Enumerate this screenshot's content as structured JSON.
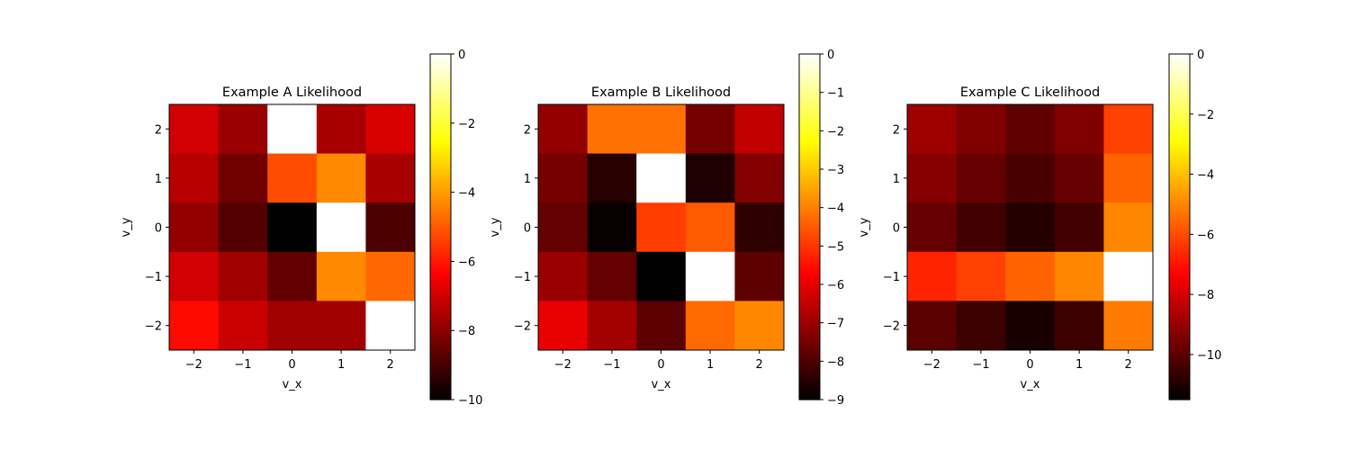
{
  "chart_data": [
    {
      "type": "heatmap",
      "title": "Example A Likelihood",
      "xlabel": "v_x",
      "ylabel": "v_y",
      "x": [
        -2,
        -1,
        0,
        1,
        2
      ],
      "y": [
        2,
        1,
        0,
        -1,
        -2
      ],
      "x_tick_labels": [
        "−2",
        "−1",
        "0",
        "1",
        "2"
      ],
      "y_tick_labels": [
        "2",
        "1",
        "0",
        "−1",
        "−2"
      ],
      "values": [
        [
          -7.0,
          -7.8,
          0.0,
          -7.6,
          -6.9
        ],
        [
          -7.4,
          -8.4,
          -5.2,
          -4.3,
          -7.6
        ],
        [
          -7.9,
          -8.8,
          -10.0,
          0.0,
          -8.9
        ],
        [
          -7.0,
          -7.7,
          -8.6,
          -4.3,
          -4.8
        ],
        [
          -6.2,
          -7.1,
          -7.7,
          -7.7,
          0.0
        ]
      ],
      "colorbar": {
        "min": -10,
        "max": 0,
        "ticks": [
          0,
          -2,
          -4,
          -6,
          -8,
          -10
        ],
        "tick_labels": [
          "0",
          "−2",
          "−4",
          "−6",
          "−8",
          "−10"
        ]
      },
      "colormap": "hot"
    },
    {
      "type": "heatmap",
      "title": "Example B Likelihood",
      "xlabel": "v_x",
      "ylabel": "v_y",
      "x": [
        -2,
        -1,
        0,
        1,
        2
      ],
      "y": [
        2,
        1,
        0,
        -1,
        -2
      ],
      "x_tick_labels": [
        "−2",
        "−1",
        "0",
        "1",
        "2"
      ],
      "y_tick_labels": [
        "2",
        "1",
        "0",
        "−1",
        "−2"
      ],
      "values": [
        [
          -7.1,
          -4.2,
          -4.2,
          -7.5,
          -6.5
        ],
        [
          -7.5,
          -8.5,
          0.0,
          -8.6,
          -7.3
        ],
        [
          -7.7,
          -8.9,
          -4.9,
          -4.5,
          -8.4
        ],
        [
          -7.0,
          -7.7,
          -9.0,
          0.0,
          -7.8
        ],
        [
          -6.0,
          -6.9,
          -7.8,
          -4.3,
          -3.9
        ]
      ],
      "colorbar": {
        "min": -9,
        "max": 0,
        "ticks": [
          0,
          -1,
          -2,
          -3,
          -4,
          -5,
          -6,
          -7,
          -8,
          -9
        ],
        "tick_labels": [
          "0",
          "−1",
          "−2",
          "−3",
          "−4",
          "−5",
          "−6",
          "−7",
          "−8",
          "−9"
        ]
      },
      "colormap": "hot"
    },
    {
      "type": "heatmap",
      "title": "Example C Likelihood",
      "xlabel": "v_x",
      "ylabel": "v_y",
      "x": [
        -2,
        -1,
        0,
        1,
        2
      ],
      "y": [
        2,
        1,
        0,
        -1,
        -2
      ],
      "x_tick_labels": [
        "−2",
        "−1",
        "0",
        "1",
        "2"
      ],
      "y_tick_labels": [
        "2",
        "1",
        "0",
        "−1",
        "−2"
      ],
      "values": [
        [
          -8.9,
          -9.4,
          -9.9,
          -9.4,
          -6.2
        ],
        [
          -9.3,
          -9.8,
          -10.3,
          -9.8,
          -5.6
        ],
        [
          -9.8,
          -10.4,
          -10.9,
          -10.4,
          -5.0
        ],
        [
          -6.7,
          -6.2,
          -5.6,
          -5.0,
          0.0
        ],
        [
          -10.0,
          -10.5,
          -11.1,
          -10.5,
          -5.2
        ]
      ],
      "colorbar": {
        "min": -11.5,
        "max": 0,
        "ticks": [
          0,
          -2,
          -4,
          -6,
          -8,
          -10
        ],
        "tick_labels": [
          "0",
          "−2",
          "−4",
          "−6",
          "−8",
          "−10"
        ]
      },
      "colormap": "hot"
    }
  ]
}
